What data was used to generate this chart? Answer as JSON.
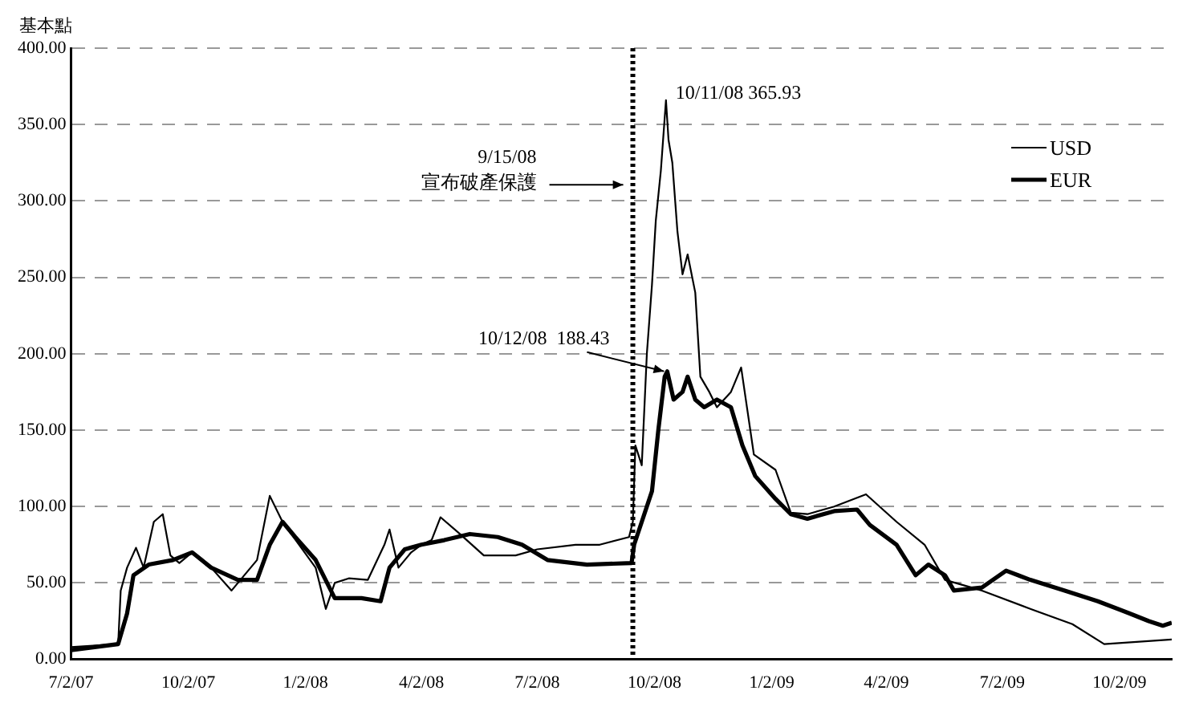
{
  "chart_data": {
    "type": "line",
    "ylabel": "基本點",
    "xlim": [
      "2007-07-02",
      "2009-11-12"
    ],
    "xticks": [
      {
        "value": "2007-07-02",
        "label": "7/2/07"
      },
      {
        "value": "2007-10-02",
        "label": "10/2/07"
      },
      {
        "value": "2008-01-02",
        "label": "1/2/08"
      },
      {
        "value": "2008-04-02",
        "label": "4/2/08"
      },
      {
        "value": "2008-07-02",
        "label": "7/2/08"
      },
      {
        "value": "2008-10-02",
        "label": "10/2/08"
      },
      {
        "value": "2009-01-02",
        "label": "1/2/09"
      },
      {
        "value": "2009-04-02",
        "label": "4/2/09"
      },
      {
        "value": "2009-07-02",
        "label": "7/2/09"
      },
      {
        "value": "2009-10-02",
        "label": "10/2/09"
      }
    ],
    "ylim": [
      0,
      400
    ],
    "yticks": [
      {
        "value": 0,
        "label": "0.00"
      },
      {
        "value": 50,
        "label": "50.00"
      },
      {
        "value": 100,
        "label": "100.00"
      },
      {
        "value": 150,
        "label": "150.00"
      },
      {
        "value": 200,
        "label": "200.00"
      },
      {
        "value": 250,
        "label": "250.00"
      },
      {
        "value": 300,
        "label": "300.00"
      },
      {
        "value": 350,
        "label": "350.00"
      },
      {
        "value": 400,
        "label": "400.00"
      }
    ],
    "grid": "y",
    "legend": "top right",
    "marker": "none",
    "series": [
      {
        "name": "USD",
        "color": "#000000",
        "x": [
          "2007-07-02",
          "2007-08-08",
          "2007-08-10",
          "2007-08-15",
          "2007-08-22",
          "2007-08-28",
          "2007-09-05",
          "2007-09-12",
          "2007-09-18",
          "2007-09-25",
          "2007-10-05",
          "2007-10-20",
          "2007-11-05",
          "2007-11-15",
          "2007-11-25",
          "2007-12-05",
          "2007-12-15",
          "2007-12-28",
          "2008-01-10",
          "2008-01-18",
          "2008-01-25",
          "2008-02-05",
          "2008-02-20",
          "2008-03-04",
          "2008-03-08",
          "2008-03-15",
          "2008-03-25",
          "2008-04-02",
          "2008-04-10",
          "2008-04-17",
          "2008-05-01",
          "2008-05-21",
          "2008-06-15",
          "2008-07-02",
          "2008-08-01",
          "2008-08-20",
          "2008-09-12",
          "2008-09-15",
          "2008-09-17",
          "2008-09-22",
          "2008-09-26",
          "2008-09-30",
          "2008-10-03",
          "2008-10-07",
          "2008-10-11",
          "2008-10-13",
          "2008-10-16",
          "2008-10-20",
          "2008-10-24",
          "2008-10-28",
          "2008-11-03",
          "2008-11-07",
          "2008-11-14",
          "2008-11-20",
          "2008-12-01",
          "2008-12-09",
          "2008-12-19",
          "2009-01-05",
          "2009-01-17",
          "2009-01-30",
          "2009-02-20",
          "2009-03-17",
          "2009-04-10",
          "2009-05-02",
          "2009-05-18",
          "2009-06-16",
          "2009-07-24",
          "2009-08-26",
          "2009-09-20",
          "2009-11-12"
        ],
        "values": [
          8,
          10,
          45,
          60,
          73,
          60,
          90,
          95,
          68,
          63,
          70,
          60,
          45,
          55,
          65,
          107,
          90,
          75,
          60,
          33,
          50,
          53,
          52,
          75,
          85,
          60,
          70,
          75,
          78,
          93,
          83,
          68,
          68,
          72,
          75,
          75,
          80,
          90,
          140,
          127,
          200,
          245,
          287,
          320,
          365.93,
          340,
          325,
          280,
          252,
          265,
          240,
          185,
          175,
          165,
          175,
          191,
          134,
          124,
          96,
          95,
          100,
          108,
          90,
          75,
          52,
          45,
          33,
          23,
          10,
          13
        ]
      },
      {
        "name": "EUR",
        "color": "#000000",
        "x": [
          "2007-07-02",
          "2007-08-08",
          "2007-08-15",
          "2007-08-20",
          "2007-09-01",
          "2007-09-20",
          "2007-10-05",
          "2007-10-20",
          "2007-11-10",
          "2007-11-25",
          "2007-12-05",
          "2007-12-15",
          "2007-12-25",
          "2008-01-10",
          "2008-01-25",
          "2008-02-15",
          "2008-03-01",
          "2008-03-08",
          "2008-03-20",
          "2008-04-02",
          "2008-04-20",
          "2008-05-10",
          "2008-06-01",
          "2008-06-20",
          "2008-07-10",
          "2008-08-10",
          "2008-09-14",
          "2008-09-16",
          "2008-09-22",
          "2008-09-30",
          "2008-10-05",
          "2008-10-10",
          "2008-10-12",
          "2008-10-17",
          "2008-10-24",
          "2008-10-28",
          "2008-11-03",
          "2008-11-10",
          "2008-11-20",
          "2008-12-01",
          "2008-12-10",
          "2008-12-20",
          "2009-01-05",
          "2009-01-17",
          "2009-01-30",
          "2009-02-20",
          "2009-03-10",
          "2009-03-20",
          "2009-04-10",
          "2009-04-25",
          "2009-05-05",
          "2009-05-18",
          "2009-05-25",
          "2009-06-16",
          "2009-07-05",
          "2009-07-24",
          "2009-08-20",
          "2009-09-15",
          "2009-10-10",
          "2009-10-25",
          "2009-11-05",
          "2009-11-12"
        ],
        "values": [
          6,
          10,
          30,
          55,
          62,
          65,
          70,
          60,
          52,
          52,
          75,
          90,
          80,
          65,
          40,
          40,
          38,
          60,
          72,
          75,
          78,
          82,
          80,
          75,
          65,
          62,
          63,
          75,
          90,
          110,
          150,
          185,
          188.43,
          170,
          175,
          185,
          170,
          165,
          170,
          165,
          140,
          120,
          105,
          95,
          92,
          97,
          98,
          88,
          75,
          55,
          62,
          55,
          45,
          47,
          58,
          52,
          45,
          38,
          30,
          25,
          22,
          24
        ]
      }
    ],
    "ref_lines": [
      {
        "axis": "x",
        "value": "2008-09-15",
        "label": "9/15/08 宣布破產保護",
        "color": "#000000",
        "line_style": "dotted"
      }
    ],
    "annotations": [
      {
        "text": "10/11/08 365.93",
        "x": "2008-10-11",
        "y": 365.93
      },
      {
        "text": "10/12/08  188.43",
        "x": "2008-10-12",
        "y": 188.43
      }
    ]
  }
}
